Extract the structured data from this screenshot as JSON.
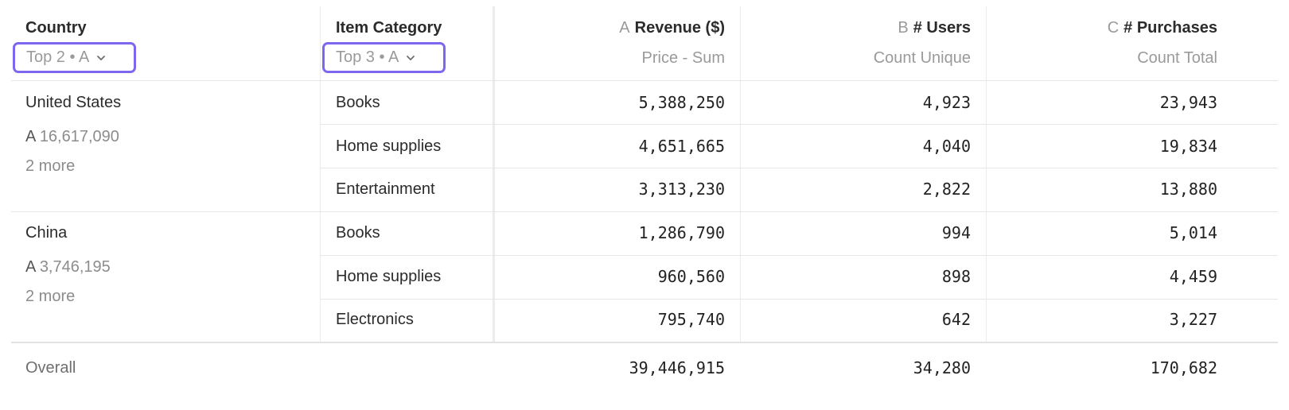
{
  "header": {
    "country": {
      "title": "Country",
      "filter": "Top 2 • A"
    },
    "category": {
      "title": "Item Category",
      "filter": "Top 3 • A"
    },
    "metrics": [
      {
        "letter": "A",
        "title": "Revenue ($)",
        "sub": "Price - Sum"
      },
      {
        "letter": "B",
        "title": "# Users",
        "sub": "Count Unique"
      },
      {
        "letter": "C",
        "title": "# Purchases",
        "sub": "Count Total"
      }
    ]
  },
  "groups": [
    {
      "country": "United States",
      "total_letter": "A",
      "total": "16,617,090",
      "more": "2 more",
      "rows": [
        {
          "category": "Books",
          "revenue": "5,388,250",
          "users": "4,923",
          "purchases": "23,943"
        },
        {
          "category": "Home supplies",
          "revenue": "4,651,665",
          "users": "4,040",
          "purchases": "19,834"
        },
        {
          "category": "Entertainment",
          "revenue": "3,313,230",
          "users": "2,822",
          "purchases": "13,880"
        }
      ]
    },
    {
      "country": "China",
      "total_letter": "A",
      "total": "3,746,195",
      "more": "2 more",
      "rows": [
        {
          "category": "Books",
          "revenue": "1,286,790",
          "users": "994",
          "purchases": "5,014"
        },
        {
          "category": "Home supplies",
          "revenue": "960,560",
          "users": "898",
          "purchases": "4,459"
        },
        {
          "category": "Electronics",
          "revenue": "795,740",
          "users": "642",
          "purchases": "3,227"
        }
      ]
    }
  ],
  "overall": {
    "label": "Overall",
    "revenue": "39,446,915",
    "users": "34,280",
    "purchases": "170,682"
  },
  "colors": {
    "accent": "#7e66f0"
  }
}
